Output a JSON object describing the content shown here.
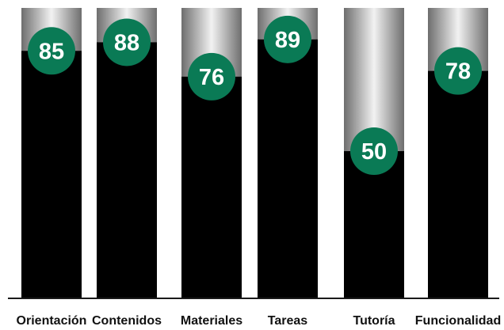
{
  "chart_data": {
    "type": "bar",
    "categories": [
      "Orientación",
      "Contenidos",
      "Materiales",
      "Tareas",
      "Tutoría",
      "Funcionalidad"
    ],
    "values": [
      85,
      88,
      76,
      89,
      50,
      78
    ],
    "ylim": [
      0,
      100
    ],
    "grid": false,
    "legend": "none",
    "title": "",
    "xlabel": "",
    "ylabel": ""
  },
  "colors": {
    "bar_fill": "#000000",
    "track_light": "#f2f2f2",
    "track_dark": "#6e6e6e",
    "badge_fill": "#0a7a55",
    "badge_text": "#ffffff",
    "axis_line": "#1a1a1a",
    "label_text": "#111111"
  }
}
